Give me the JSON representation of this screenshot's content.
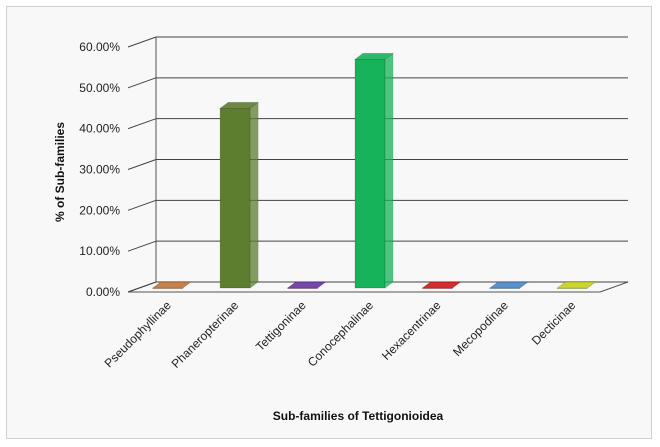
{
  "chart_data": {
    "type": "bar",
    "title": "",
    "xlabel": "Sub-families of Tettigonioidea",
    "ylabel": "% of Sub-families",
    "ylim": [
      0,
      60
    ],
    "yticks": [
      "0.00%",
      "10.00%",
      "20.00%",
      "30.00%",
      "40.00%",
      "50.00%",
      "60.00%"
    ],
    "categories": [
      "Pseudophyllinae",
      "Phaneropterinae",
      "Tettigoninae",
      "Conocephalinae",
      "Hexacentrinae",
      "Mecopodinae",
      "Decticinae"
    ],
    "values": [
      0.0,
      44.0,
      0.0,
      56.0,
      0.0,
      0.0,
      0.0
    ],
    "colors": [
      "#c0763a",
      "#5d7e2e",
      "#6a34a0",
      "#17b35a",
      "#d01818",
      "#4a86c5",
      "#c8d21a"
    ],
    "grid": true,
    "legend": "none"
  }
}
